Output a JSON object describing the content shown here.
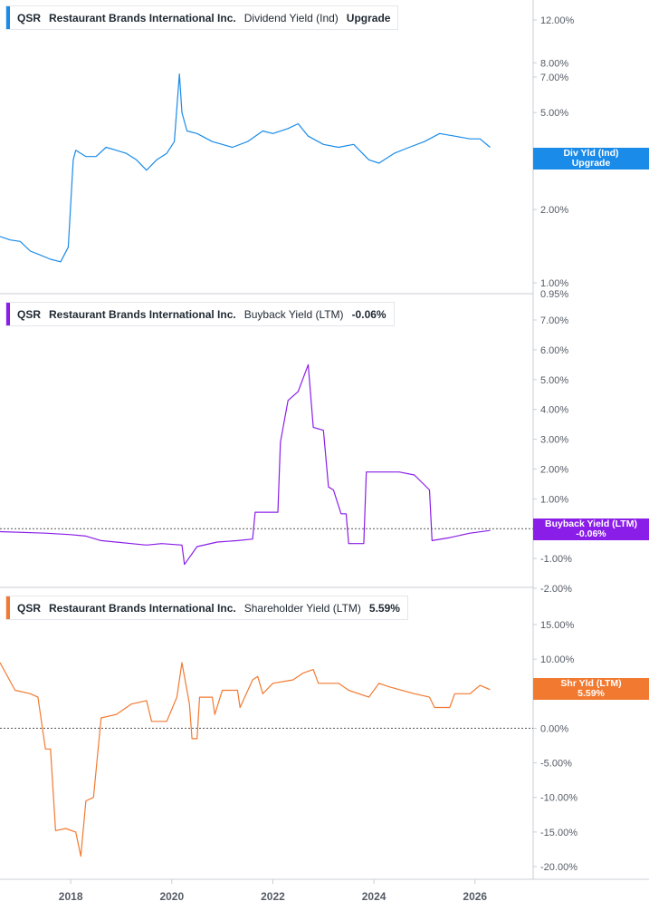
{
  "panels": [
    {
      "ticker": "QSR",
      "company": "Restaurant Brands International Inc.",
      "metric": "Dividend Yield (Ind)",
      "value": "Upgrade",
      "color": "#1a8be8",
      "tag_line1": "Div Yld (Ind)",
      "tag_line2": "Upgrade"
    },
    {
      "ticker": "QSR",
      "company": "Restaurant Brands International Inc.",
      "metric": "Buyback Yield (LTM)",
      "value": "-0.06%",
      "color": "#8a1ee8",
      "tag_line1": "Buyback Yield (LTM)",
      "tag_line2": "-0.06%"
    },
    {
      "ticker": "QSR",
      "company": "Restaurant Brands International Inc.",
      "metric": "Shareholder Yield (LTM)",
      "value": "5.59%",
      "color": "#f27a30",
      "tag_line1": "Shr Yld (LTM)",
      "tag_line2": "5.59%"
    }
  ],
  "chart_data": [
    {
      "type": "line",
      "title": "QSR Restaurant Brands International Inc. Dividend Yield (Ind)",
      "y_scale": "log",
      "ylim": [
        0.95,
        12.0
      ],
      "y_ticks": [
        1.0,
        2.0,
        5.0,
        7.0,
        8.0,
        12.0
      ],
      "y_tick_labels": [
        "1.00%",
        "2.00%",
        "5.00%",
        "7.00%",
        "8.00%",
        "12.00%"
      ],
      "last_value_label": "Upgrade",
      "series": [
        {
          "x": [
            2016.6,
            2016.8,
            2017.0,
            2017.2,
            2017.4,
            2017.6,
            2017.8,
            2017.95,
            2018.05,
            2018.1,
            2018.3,
            2018.5,
            2018.7,
            2018.9,
            2019.1,
            2019.3,
            2019.5,
            2019.7,
            2019.9,
            2020.05,
            2020.15,
            2020.2,
            2020.3,
            2020.5,
            2020.8,
            2021.2,
            2021.5,
            2021.8,
            2022.0,
            2022.3,
            2022.5,
            2022.7,
            2023.0,
            2023.3,
            2023.6,
            2023.9,
            2024.1,
            2024.4,
            2024.7,
            2025.0,
            2025.3,
            2025.6,
            2025.9,
            2026.1,
            2026.3
          ],
          "y": [
            1.55,
            1.5,
            1.48,
            1.35,
            1.3,
            1.25,
            1.22,
            1.4,
            3.2,
            3.5,
            3.3,
            3.3,
            3.6,
            3.5,
            3.4,
            3.2,
            2.9,
            3.2,
            3.4,
            3.8,
            7.2,
            5.0,
            4.2,
            4.1,
            3.8,
            3.6,
            3.8,
            4.2,
            4.1,
            4.3,
            4.5,
            4.0,
            3.7,
            3.6,
            3.7,
            3.2,
            3.1,
            3.4,
            3.6,
            3.8,
            4.1,
            4.0,
            3.9,
            3.9,
            3.6
          ]
        }
      ]
    },
    {
      "type": "line",
      "title": "QSR Restaurant Brands International Inc. Buyback Yield (LTM)",
      "ylim": [
        -2.0,
        7.0
      ],
      "y_ticks": [
        -2,
        -1,
        0,
        1,
        2,
        3,
        4,
        5,
        6,
        7
      ],
      "y_tick_labels": [
        "-2.00%",
        "-1.00%",
        "0.00%",
        "1.00%",
        "2.00%",
        "3.00%",
        "4.00%",
        "5.00%",
        "6.00%",
        "7.00%"
      ],
      "extra_tick_label": "0.95%",
      "last_value_label": "-0.06%",
      "series": [
        {
          "x": [
            2016.6,
            2017.5,
            2018.0,
            2018.3,
            2018.6,
            2018.9,
            2019.2,
            2019.5,
            2019.8,
            2020.2,
            2020.25,
            2020.5,
            2020.9,
            2021.3,
            2021.6,
            2021.65,
            2021.75,
            2022.1,
            2022.15,
            2022.3,
            2022.5,
            2022.7,
            2022.8,
            2023.0,
            2023.1,
            2023.2,
            2023.35,
            2023.45,
            2023.5,
            2023.55,
            2023.8,
            2023.85,
            2024.1,
            2024.15,
            2024.5,
            2024.8,
            2025.1,
            2025.15,
            2025.5,
            2025.9,
            2026.3
          ],
          "y": [
            -0.1,
            -0.15,
            -0.2,
            -0.25,
            -0.4,
            -0.45,
            -0.5,
            -0.55,
            -0.5,
            -0.55,
            -1.2,
            -0.6,
            -0.45,
            -0.4,
            -0.35,
            0.55,
            0.55,
            0.55,
            2.9,
            4.3,
            4.6,
            5.5,
            3.4,
            3.3,
            1.4,
            1.3,
            0.5,
            0.5,
            -0.5,
            -0.5,
            -0.5,
            1.9,
            1.9,
            1.9,
            1.9,
            1.8,
            1.3,
            -0.4,
            -0.3,
            -0.15,
            -0.06
          ]
        }
      ]
    },
    {
      "type": "line",
      "title": "QSR Restaurant Brands International Inc. Shareholder Yield (LTM)",
      "ylim": [
        -20.0,
        15.0
      ],
      "y_ticks": [
        -20,
        -15,
        -10,
        -5,
        0,
        5,
        10,
        15
      ],
      "y_tick_labels": [
        "-20.00%",
        "-15.00%",
        "-10.00%",
        "-5.00%",
        "0.00%",
        "5.00%",
        "10.00%",
        "15.00%"
      ],
      "last_value_label": "5.59%",
      "series": [
        {
          "x": [
            2016.6,
            2016.9,
            2017.2,
            2017.35,
            2017.5,
            2017.6,
            2017.7,
            2017.9,
            2018.1,
            2018.2,
            2018.3,
            2018.45,
            2018.6,
            2018.9,
            2019.2,
            2019.5,
            2019.6,
            2019.9,
            2020.1,
            2020.2,
            2020.35,
            2020.4,
            2020.5,
            2020.55,
            2020.8,
            2020.85,
            2021.0,
            2021.3,
            2021.35,
            2021.6,
            2021.7,
            2021.8,
            2022.0,
            2022.4,
            2022.6,
            2022.8,
            2022.9,
            2023.3,
            2023.5,
            2023.9,
            2024.1,
            2024.3,
            2024.8,
            2025.1,
            2025.2,
            2025.5,
            2025.6,
            2025.9,
            2026.1,
            2026.3
          ],
          "y": [
            9.5,
            5.5,
            5.0,
            4.5,
            -3.0,
            -3.0,
            -14.8,
            -14.5,
            -15.0,
            -18.5,
            -10.5,
            -10.0,
            1.5,
            2.0,
            3.5,
            4.0,
            1.0,
            1.0,
            4.5,
            9.5,
            3.5,
            -1.5,
            -1.5,
            4.5,
            4.5,
            2.0,
            5.5,
            5.5,
            3.0,
            7.0,
            7.5,
            5.0,
            6.5,
            7.0,
            8.0,
            8.5,
            6.5,
            6.5,
            5.5,
            4.5,
            6.5,
            6.0,
            5.0,
            4.5,
            3.0,
            3.0,
            5.0,
            5.0,
            6.2,
            5.59
          ]
        }
      ]
    }
  ],
  "x_axis": {
    "ticks": [
      2018,
      2020,
      2022,
      2024,
      2026
    ],
    "tick_labels": [
      "2018",
      "2020",
      "2022",
      "2024",
      "2026"
    ],
    "range": [
      2016.6,
      2026.9
    ]
  },
  "colors": {
    "dividend": "#1a8be8",
    "buyback": "#8a1ee8",
    "shareholder": "#f27a30",
    "grid": "#e3e6ea",
    "axis_text": "#555c66"
  }
}
